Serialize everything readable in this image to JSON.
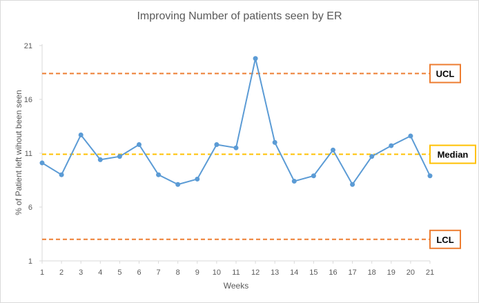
{
  "chart_data": {
    "type": "line",
    "title": "Improving Number of patients seen by ER",
    "xlabel": "Weeks",
    "ylabel": "% of Patient left wihout been seen",
    "x": [
      1,
      2,
      3,
      4,
      5,
      6,
      7,
      8,
      9,
      10,
      11,
      12,
      13,
      14,
      15,
      16,
      17,
      18,
      19,
      20,
      21
    ],
    "series": [
      {
        "values": [
          10.1,
          9.0,
          12.7,
          10.4,
          10.7,
          11.8,
          9.0,
          8.1,
          8.6,
          11.8,
          11.5,
          19.8,
          12.0,
          8.4,
          8.9,
          11.3,
          8.1,
          10.7,
          11.7,
          12.6,
          8.9
        ],
        "color": "#5b9bd5"
      }
    ],
    "ylim": [
      1,
      21
    ],
    "yticks": [
      1,
      6,
      11,
      16,
      21
    ],
    "grid": false,
    "reference_lines": [
      {
        "label": "UCL",
        "value": 18.4,
        "color": "#ed7d31",
        "box_color": "#ed7d31"
      },
      {
        "label": "Median",
        "value": 10.9,
        "color": "#ffc000",
        "box_color": "#ffc000"
      },
      {
        "label": "LCL",
        "value": 3.0,
        "color": "#ed7d31",
        "box_color": "#ed7d31"
      }
    ],
    "axis_color": "#d9d9d9"
  }
}
